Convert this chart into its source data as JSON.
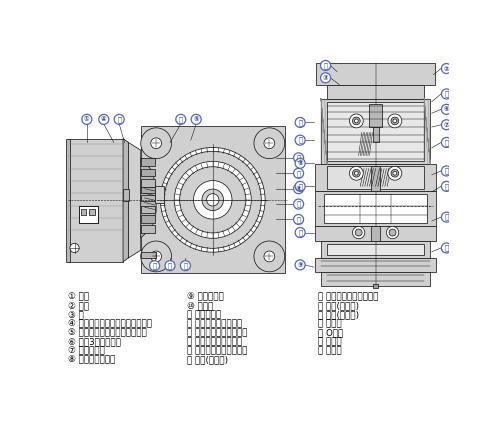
{
  "bg_color": "#ffffff",
  "label_color": "#000000",
  "callout_border": "#5566bb",
  "callout_text": "#3344aa",
  "gray_light": "#d0d0d0",
  "gray_mid": "#b8b8b8",
  "gray_dark": "#999999",
  "line_color": "#1a1a1a",
  "left_labels": [
    [
      "①",
      "电机"
    ],
    [
      "②",
      "箱体"
    ],
    [
      "③",
      "盖"
    ],
    [
      "④",
      "电机小齿轮（准双曲面小齿轮）"
    ],
    [
      "⑤",
      "第一段齿轮（准双曲面齿轮）"
    ],
    [
      "⑥",
      "带第3轴的小齿轮"
    ],
    [
      "⑦",
      "第二段齿轮"
    ],
    [
      "⑧",
      "第三轴带小齿轮"
    ]
  ],
  "mid_labels": [
    [
      "⑨",
      "第三段齿轮"
    ],
    [
      "⑩",
      "输出轴"
    ],
    [
      "⑪",
      "空心轴输出"
    ],
    [
      "⑫",
      "轴承（第二轴盖端）"
    ],
    [
      "⑬",
      "轴承（第二轴箱体端）"
    ],
    [
      "⑭",
      "轴承（第三轴盖端）"
    ],
    [
      "⑮",
      "轴承（第三轴箱体端）"
    ],
    [
      "⑯",
      "轴承(输出轴)"
    ]
  ],
  "right_labels": [
    [
      "⑰",
      "轴承（电机轴负载端）"
    ],
    [
      "⑱",
      "油封(输出端)"
    ],
    [
      "⑲",
      "油封(电机轴)"
    ],
    [
      "⑳",
      "密封盖"
    ],
    [
      "㉑",
      "O形环"
    ],
    [
      "㉒",
      "过滤器"
    ],
    [
      "㉓",
      "密封件"
    ]
  ]
}
